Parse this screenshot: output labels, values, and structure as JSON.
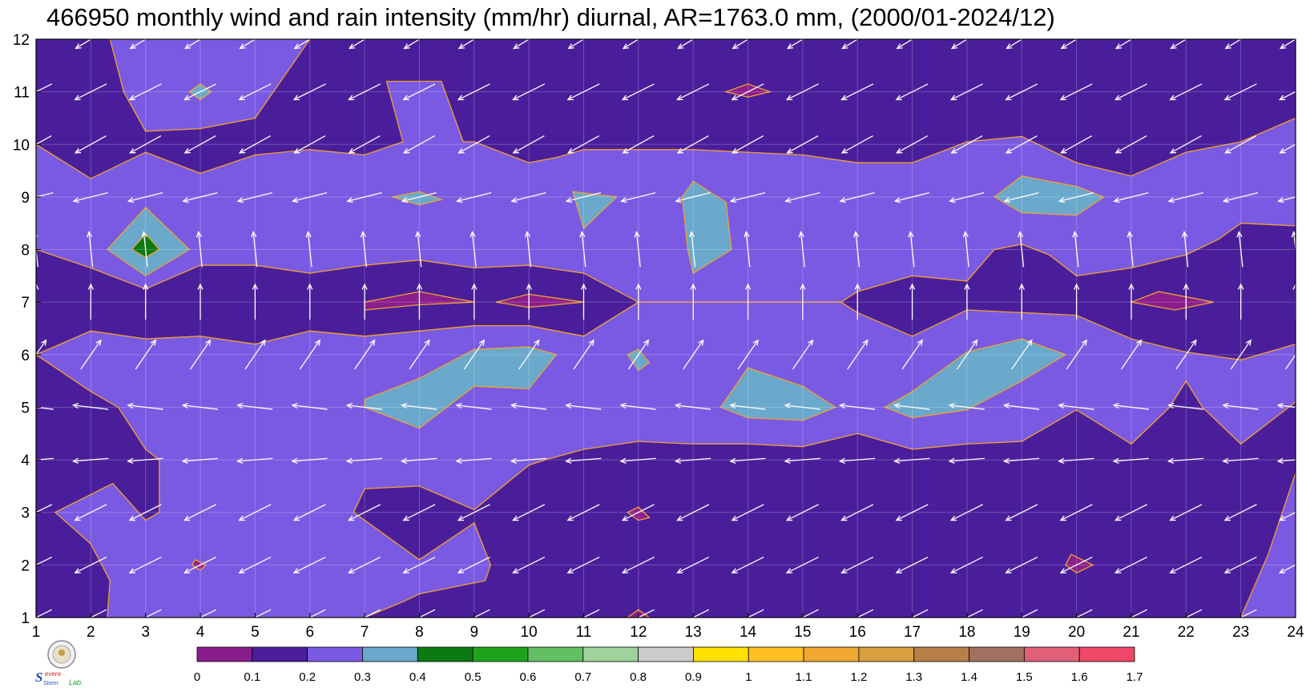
{
  "chart_data": {
    "type": "heatmap",
    "subtype": "filled-contour with wind vectors",
    "title": "466950 monthly wind and rain intensity (mm/hr) diurnal, AR=1763.0 mm, (2000/01-2024/12)",
    "xlabel": "",
    "ylabel": "",
    "x_ticks": [
      "1",
      "2",
      "3",
      "4",
      "5",
      "6",
      "7",
      "8",
      "9",
      "10",
      "11",
      "12",
      "13",
      "14",
      "15",
      "16",
      "17",
      "18",
      "19",
      "20",
      "21",
      "22",
      "23",
      "24"
    ],
    "y_ticks": [
      "1",
      "2",
      "3",
      "4",
      "5",
      "6",
      "7",
      "8",
      "9",
      "10",
      "11",
      "12"
    ],
    "xlim": [
      1,
      24
    ],
    "ylim": [
      1,
      12
    ],
    "grid": true,
    "colorbar": {
      "placement": "bottom",
      "levels": [
        "0",
        "0.1",
        "0.2",
        "0.3",
        "0.4",
        "0.5",
        "0.6",
        "0.7",
        "0.8",
        "0.9",
        "1",
        "1.1",
        "1.2",
        "1.3",
        "1.4",
        "1.5",
        "1.6",
        "1.7"
      ],
      "colors": [
        "#8a1e8c",
        "#4a1e9b",
        "#7a5ae3",
        "#6aa8cc",
        "#0c7a12",
        "#1ea31c",
        "#62c062",
        "#9ed39c",
        "#cccccc",
        "#ffe000",
        "#ffc026",
        "#f0a830",
        "#d8a040",
        "#b88048",
        "#a07060",
        "#e06078",
        "#f04868",
        "#d03040"
      ]
    },
    "contour_regions": [
      {
        "level_index": 2,
        "points": [
          [
            1,
            6
          ],
          [
            2,
            6.45
          ],
          [
            3,
            6.3
          ],
          [
            4,
            6.35
          ],
          [
            5,
            6.2
          ],
          [
            6,
            6.45
          ],
          [
            7,
            6.35
          ],
          [
            8,
            6.45
          ],
          [
            9,
            6.55
          ],
          [
            10,
            6.55
          ],
          [
            11,
            6.35
          ],
          [
            12,
            7
          ],
          [
            13,
            7
          ],
          [
            15,
            7
          ],
          [
            15.7,
            7
          ],
          [
            16,
            7.2
          ],
          [
            17,
            7.5
          ],
          [
            18,
            7.4
          ],
          [
            18.5,
            8
          ],
          [
            19,
            8.1
          ],
          [
            19.5,
            7.9
          ],
          [
            20,
            7.5
          ],
          [
            21,
            7.65
          ],
          [
            22,
            7.9
          ],
          [
            22.6,
            8.2
          ],
          [
            23,
            8.5
          ],
          [
            24,
            8.45
          ],
          [
            24,
            10.5
          ],
          [
            23,
            10.05
          ],
          [
            22,
            9.85
          ],
          [
            21,
            9.4
          ],
          [
            20,
            9.65
          ],
          [
            19,
            10.15
          ],
          [
            18,
            10.05
          ],
          [
            17,
            9.65
          ],
          [
            16,
            9.65
          ],
          [
            15,
            9.8
          ],
          [
            14,
            9.85
          ],
          [
            13,
            9.9
          ],
          [
            12,
            9.9
          ],
          [
            11,
            9.9
          ],
          [
            10.5,
            9.75
          ],
          [
            10,
            9.65
          ],
          [
            9,
            10.05
          ],
          [
            8.8,
            10.05
          ],
          [
            8.4,
            11.2
          ],
          [
            7.4,
            11.2
          ],
          [
            7.7,
            10.05
          ],
          [
            7,
            9.8
          ],
          [
            6,
            9.9
          ],
          [
            5,
            9.8
          ],
          [
            4,
            9.45
          ],
          [
            3,
            9.85
          ],
          [
            2,
            9.35
          ],
          [
            1,
            10
          ],
          [
            1,
            8
          ],
          [
            2,
            7.65
          ],
          [
            3,
            7.25
          ],
          [
            4,
            7.7
          ],
          [
            5,
            7.7
          ],
          [
            6,
            7.55
          ],
          [
            7,
            7.7
          ],
          [
            8,
            7.8
          ],
          [
            9,
            7.65
          ],
          [
            10,
            7.7
          ],
          [
            11,
            7.55
          ],
          [
            12,
            7
          ],
          [
            11,
            6.35
          ],
          [
            10,
            6.55
          ],
          [
            9,
            6.55
          ],
          [
            8,
            6.45
          ],
          [
            7,
            6.35
          ],
          [
            6,
            6.45
          ],
          [
            5,
            6.2
          ],
          [
            4,
            6.35
          ],
          [
            3,
            6.3
          ],
          [
            2,
            6.45
          ],
          [
            1,
            6
          ]
        ]
      },
      {
        "level_index": 2,
        "points": [
          [
            1,
            6
          ],
          [
            2,
            5.3
          ],
          [
            2.5,
            5
          ],
          [
            3,
            4.2
          ],
          [
            3.25,
            4
          ],
          [
            3.25,
            3
          ],
          [
            3,
            2.85
          ],
          [
            2.4,
            3.55
          ],
          [
            1.35,
            3
          ],
          [
            2,
            2.4
          ],
          [
            2.35,
            1.7
          ],
          [
            2.3,
            1
          ],
          [
            7,
            1
          ],
          [
            7.7,
            1.3
          ],
          [
            8,
            1.45
          ],
          [
            9.2,
            1.7
          ],
          [
            9.3,
            2
          ],
          [
            9,
            2.8
          ],
          [
            8,
            2.1
          ],
          [
            6.8,
            3
          ],
          [
            7,
            3.45
          ],
          [
            8,
            3.5
          ],
          [
            9,
            3.05
          ],
          [
            10,
            3.9
          ],
          [
            10.3,
            4
          ],
          [
            11,
            4.2
          ],
          [
            12,
            4.35
          ],
          [
            13,
            4.3
          ],
          [
            14,
            4.3
          ],
          [
            15,
            4.25
          ],
          [
            16,
            4.5
          ],
          [
            17,
            4.2
          ],
          [
            18,
            4.3
          ],
          [
            19,
            4.35
          ],
          [
            20,
            4.95
          ],
          [
            21,
            4.3
          ],
          [
            21.7,
            5
          ],
          [
            22,
            5.5
          ],
          [
            22.3,
            5
          ],
          [
            23,
            4.3
          ],
          [
            24,
            5.1
          ],
          [
            24,
            6.2
          ],
          [
            23,
            5.9
          ],
          [
            22,
            6.05
          ],
          [
            21,
            6.3
          ],
          [
            20,
            6.75
          ],
          [
            19,
            6.8
          ],
          [
            18,
            6.85
          ],
          [
            17,
            6.35
          ],
          [
            16,
            6.8
          ],
          [
            15.7,
            7
          ],
          [
            12,
            7
          ],
          [
            11,
            6.35
          ],
          [
            10,
            6.55
          ],
          [
            9,
            6.55
          ],
          [
            8,
            6.45
          ],
          [
            7,
            6.35
          ],
          [
            6,
            6.45
          ],
          [
            5,
            6.2
          ],
          [
            4,
            6.35
          ],
          [
            3,
            6.3
          ],
          [
            2,
            6.45
          ],
          [
            1,
            6
          ]
        ]
      },
      {
        "level_index": 2,
        "points": [
          [
            2.35,
            12
          ],
          [
            2.6,
            11
          ],
          [
            3,
            10.25
          ],
          [
            4,
            10.3
          ],
          [
            5,
            10.5
          ],
          [
            6,
            12
          ]
        ]
      },
      {
        "level_index": 2,
        "points": [
          [
            23,
            1
          ],
          [
            23.5,
            2.2
          ],
          [
            24,
            3.75
          ],
          [
            24,
            1
          ]
        ]
      },
      {
        "level_index": 0,
        "points": [
          [
            7,
            7
          ],
          [
            8,
            7.2
          ],
          [
            9,
            7
          ],
          [
            8,
            6.95
          ],
          [
            7,
            6.85
          ]
        ]
      },
      {
        "level_index": 0,
        "points": [
          [
            9.4,
            7
          ],
          [
            10,
            7.15
          ],
          [
            11,
            7
          ],
          [
            10,
            6.9
          ]
        ]
      },
      {
        "level_index": 0,
        "points": [
          [
            21,
            7
          ],
          [
            21.5,
            7.2
          ],
          [
            22.5,
            7
          ],
          [
            21.8,
            6.85
          ]
        ]
      },
      {
        "level_index": 0,
        "points": [
          [
            13.6,
            11
          ],
          [
            14,
            11.15
          ],
          [
            14.4,
            11
          ],
          [
            14,
            10.9
          ]
        ]
      },
      {
        "level_index": 0,
        "points": [
          [
            11.8,
            1
          ],
          [
            12,
            1.15
          ],
          [
            12.2,
            1
          ]
        ]
      },
      {
        "level_index": 0,
        "points": [
          [
            11.8,
            3
          ],
          [
            12,
            3.1
          ],
          [
            12.2,
            2.9
          ],
          [
            12,
            2.85
          ]
        ]
      },
      {
        "level_index": 3,
        "points": [
          [
            3,
            8.8
          ],
          [
            3.8,
            8
          ],
          [
            3,
            7.5
          ],
          [
            2.3,
            8
          ]
        ]
      },
      {
        "level_index": 4,
        "points": [
          [
            3,
            8.3
          ],
          [
            3.25,
            8
          ],
          [
            3,
            7.85
          ],
          [
            2.75,
            8
          ]
        ]
      },
      {
        "level_index": 3,
        "points": [
          [
            4,
            11.15
          ],
          [
            4.2,
            11
          ],
          [
            4,
            10.85
          ],
          [
            3.8,
            11
          ]
        ]
      },
      {
        "level_index": 3,
        "points": [
          [
            7.5,
            9
          ],
          [
            8,
            9.1
          ],
          [
            8.4,
            8.95
          ],
          [
            8,
            8.85
          ]
        ]
      },
      {
        "level_index": 3,
        "points": [
          [
            10.8,
            9.1
          ],
          [
            11.6,
            9
          ],
          [
            11,
            8.4
          ]
        ]
      },
      {
        "level_index": 3,
        "points": [
          [
            12.8,
            9
          ],
          [
            13,
            9.3
          ],
          [
            13.6,
            8.9
          ],
          [
            13.7,
            8
          ],
          [
            13,
            7.55
          ],
          [
            12.9,
            8
          ]
        ]
      },
      {
        "level_index": 3,
        "points": [
          [
            18.5,
            9
          ],
          [
            19,
            9.4
          ],
          [
            20,
            9.2
          ],
          [
            20.5,
            9
          ],
          [
            20,
            8.65
          ],
          [
            19,
            8.7
          ]
        ]
      },
      {
        "level_index": 3,
        "points": [
          [
            7,
            5.15
          ],
          [
            8,
            5.55
          ],
          [
            9,
            6.1
          ],
          [
            10,
            6.15
          ],
          [
            10.5,
            6
          ],
          [
            10,
            5.35
          ],
          [
            9,
            5.4
          ],
          [
            8,
            4.6
          ],
          [
            7,
            5
          ]
        ]
      },
      {
        "level_index": 3,
        "points": [
          [
            11.8,
            6
          ],
          [
            12,
            6.1
          ],
          [
            12.2,
            5.85
          ],
          [
            12,
            5.7
          ]
        ]
      },
      {
        "level_index": 3,
        "points": [
          [
            13.5,
            5
          ],
          [
            14,
            5.75
          ],
          [
            15,
            5.4
          ],
          [
            15.6,
            5
          ],
          [
            15,
            4.75
          ],
          [
            14,
            4.8
          ]
        ]
      },
      {
        "level_index": 3,
        "points": [
          [
            16.5,
            5
          ],
          [
            17,
            5.3
          ],
          [
            18,
            6.05
          ],
          [
            19,
            6.3
          ],
          [
            19.8,
            6
          ],
          [
            19,
            5.5
          ],
          [
            18,
            4.95
          ],
          [
            17,
            4.8
          ]
        ]
      },
      {
        "level_index": 0,
        "points": [
          [
            3.9,
            2.1
          ],
          [
            4.1,
            2
          ],
          [
            4,
            1.9
          ],
          [
            3.85,
            2
          ]
        ]
      },
      {
        "level_index": 0,
        "points": [
          [
            19.9,
            2.2
          ],
          [
            20.3,
            2
          ],
          [
            20,
            1.85
          ],
          [
            19.8,
            2
          ]
        ]
      }
    ],
    "wind_vectors": {
      "description": "arrow direction per month row (dx, dy in relative units)",
      "rows": [
        {
          "month": 1,
          "dx": -0.9,
          "dy": -0.45
        },
        {
          "month": 2,
          "dx": -0.9,
          "dy": -0.45
        },
        {
          "month": 3,
          "dx": -0.9,
          "dy": -0.45
        },
        {
          "month": 4,
          "dx": -1.0,
          "dy": -0.08
        },
        {
          "month": 5,
          "dx": -1.0,
          "dy": 0.12
        },
        {
          "month": 6,
          "dx": 0.55,
          "dy": 0.8
        },
        {
          "month": 7,
          "dx": 0.0,
          "dy": 1.0
        },
        {
          "month": 8,
          "dx": -0.1,
          "dy": 0.95
        },
        {
          "month": 9,
          "dx": -1.0,
          "dy": -0.25
        },
        {
          "month": 10,
          "dx": -0.9,
          "dy": -0.5
        },
        {
          "month": 11,
          "dx": -0.9,
          "dy": -0.45
        },
        {
          "month": 12,
          "dx": -0.9,
          "dy": -0.55
        }
      ]
    }
  },
  "logo": {
    "text_a": "S",
    "text_b": "evere",
    "text_c": "Storm",
    "text_d": "Lab."
  }
}
